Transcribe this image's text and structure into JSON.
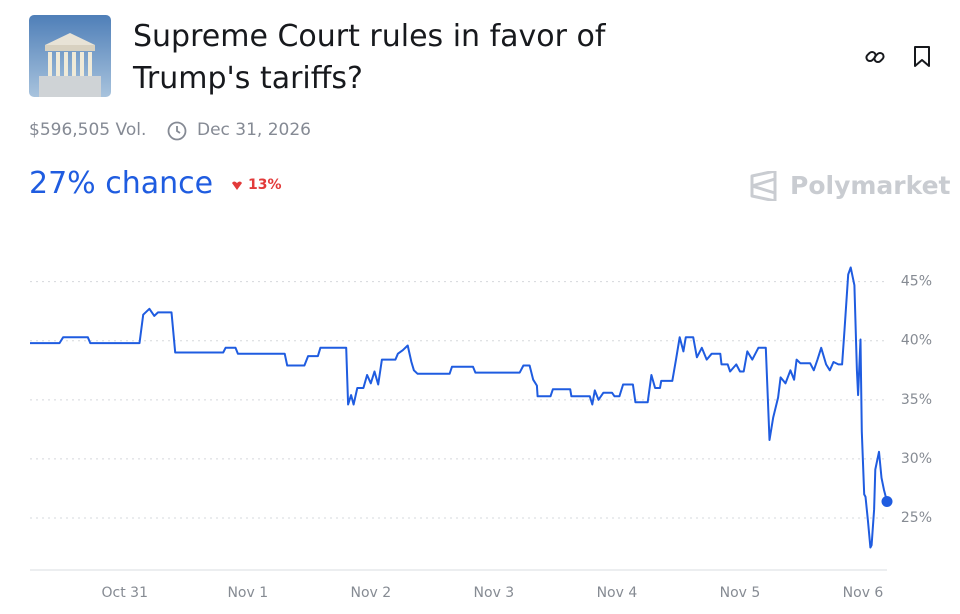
{
  "header": {
    "title": "Supreme Court rules in favor of Trump's tariffs?",
    "volume": "$596,505 Vol.",
    "end_date": "Dec 31, 2026",
    "chance": "27% chance",
    "change": "13%",
    "brand": "Polymarket"
  },
  "chart_data": {
    "type": "line",
    "color": "#1f5ce0",
    "grid": true,
    "xlim": [
      -0.77,
      6.195
    ],
    "ylim": [
      20.6,
      47
    ],
    "xticks": [
      {
        "value": 0,
        "label": "Oct 31"
      },
      {
        "value": 1,
        "label": "Nov 1"
      },
      {
        "value": 2,
        "label": "Nov 2"
      },
      {
        "value": 3,
        "label": "Nov 3"
      },
      {
        "value": 4,
        "label": "Nov 4"
      },
      {
        "value": 5,
        "label": "Nov 5"
      },
      {
        "value": 6,
        "label": "Nov 6"
      }
    ],
    "yticks": [
      {
        "value": 25,
        "label": "25%"
      },
      {
        "value": 30,
        "label": "30%"
      },
      {
        "value": 35,
        "label": "35%"
      },
      {
        "value": 40,
        "label": "40%"
      },
      {
        "value": 45,
        "label": "45%"
      }
    ],
    "x": [
      -0.77,
      -0.53,
      -0.5,
      -0.3,
      -0.28,
      0.12,
      0.15,
      0.2,
      0.24,
      0.27,
      0.38,
      0.41,
      0.8,
      0.82,
      0.9,
      0.92,
      1.3,
      1.32,
      1.46,
      1.49,
      1.57,
      1.59,
      1.8,
      1.815,
      1.84,
      1.86,
      1.89,
      1.94,
      1.97,
      2.0,
      2.03,
      2.06,
      2.09,
      2.2,
      2.22,
      2.26,
      2.3,
      2.33,
      2.35,
      2.38,
      2.64,
      2.66,
      2.83,
      2.85,
      3.21,
      3.24,
      3.29,
      3.32,
      3.35,
      3.355,
      3.46,
      3.48,
      3.62,
      3.63,
      3.78,
      3.8,
      3.82,
      3.85,
      3.89,
      3.96,
      3.98,
      4.02,
      4.05,
      4.13,
      4.15,
      4.25,
      4.28,
      4.31,
      4.35,
      4.36,
      4.45,
      4.48,
      4.51,
      4.54,
      4.56,
      4.62,
      4.65,
      4.69,
      4.73,
      4.77,
      4.84,
      4.85,
      4.9,
      4.92,
      4.97,
      5.0,
      5.03,
      5.06,
      5.1,
      5.15,
      5.21,
      5.24,
      5.27,
      5.31,
      5.33,
      5.37,
      5.41,
      5.44,
      5.46,
      5.49,
      5.57,
      5.6,
      5.63,
      5.66,
      5.7,
      5.73,
      5.76,
      5.8,
      5.83,
      5.85,
      5.88,
      5.9,
      5.93,
      5.95,
      5.96,
      5.98,
      5.99,
      6.01,
      6.02,
      6.04,
      6.06,
      6.07,
      6.09,
      6.1,
      6.13,
      6.15,
      6.17,
      6.195
    ],
    "values": [
      39.8,
      39.8,
      40.3,
      40.3,
      39.8,
      39.8,
      42.2,
      42.7,
      42.1,
      42.4,
      42.4,
      39.0,
      39.0,
      39.4,
      39.4,
      38.9,
      38.9,
      37.9,
      37.9,
      38.7,
      38.7,
      39.4,
      39.4,
      34.6,
      35.4,
      34.6,
      36.0,
      36.0,
      37.1,
      36.4,
      37.4,
      36.3,
      38.4,
      38.4,
      38.9,
      39.2,
      39.6,
      38.2,
      37.5,
      37.2,
      37.2,
      37.8,
      37.8,
      37.3,
      37.3,
      37.9,
      37.9,
      36.7,
      36.2,
      35.3,
      35.3,
      35.9,
      35.9,
      35.3,
      35.3,
      34.6,
      35.8,
      35.0,
      35.6,
      35.6,
      35.3,
      35.3,
      36.3,
      36.3,
      34.8,
      34.8,
      37.1,
      36.0,
      36.0,
      36.6,
      36.6,
      38.4,
      40.3,
      39.1,
      40.3,
      40.3,
      38.6,
      39.4,
      38.4,
      38.9,
      38.9,
      38.0,
      38.0,
      37.4,
      38.0,
      37.4,
      37.4,
      39.1,
      38.4,
      39.4,
      39.4,
      31.6,
      33.5,
      35.2,
      36.9,
      36.4,
      37.5,
      36.7,
      38.4,
      38.1,
      38.1,
      37.5,
      38.4,
      39.4,
      38.0,
      37.5,
      38.2,
      38.0,
      38.0,
      40.9,
      45.6,
      46.2,
      44.7,
      37.5,
      35.4,
      40.1,
      32.3,
      27.0,
      26.8,
      24.8,
      22.5,
      22.7,
      25.7,
      29.1,
      30.6,
      28.4,
      27.4,
      26.4
    ]
  }
}
